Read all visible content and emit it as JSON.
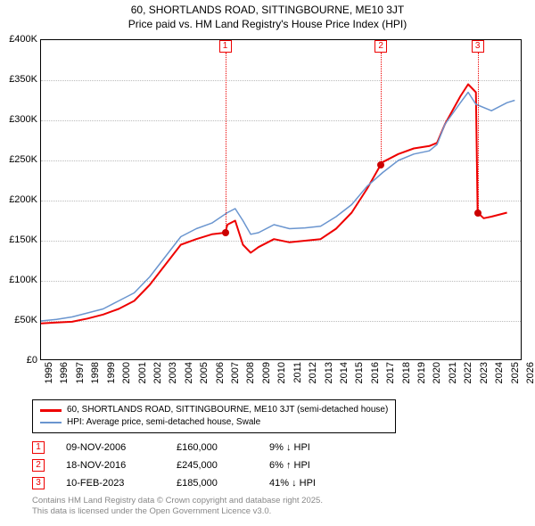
{
  "title_line1": "60, SHORTLANDS ROAD, SITTINGBOURNE, ME10 3JT",
  "title_line2": "Price paid vs. HM Land Registry's House Price Index (HPI)",
  "chart": {
    "type": "line",
    "background_color": "#ffffff",
    "grid_color": "#bbbbbb",
    "axis_color": "#000000",
    "label_fontsize": 11,
    "x": {
      "min": 1995,
      "max": 2026,
      "ticks": [
        1995,
        1996,
        1997,
        1998,
        1999,
        2000,
        2001,
        2002,
        2003,
        2004,
        2005,
        2006,
        2007,
        2008,
        2009,
        2010,
        2011,
        2012,
        2013,
        2014,
        2015,
        2016,
        2017,
        2018,
        2019,
        2020,
        2021,
        2022,
        2023,
        2024,
        2025,
        2026
      ]
    },
    "y": {
      "min": 0,
      "max": 400000,
      "ticks": [
        0,
        50000,
        100000,
        150000,
        200000,
        250000,
        300000,
        350000,
        400000
      ],
      "tick_labels": [
        "£0",
        "£50K",
        "£100K",
        "£150K",
        "£200K",
        "£250K",
        "£300K",
        "£350K",
        "£400K"
      ]
    },
    "series": [
      {
        "name": "property",
        "label": "60, SHORTLANDS ROAD, SITTINGBOURNE, ME10 3JT (semi-detached house)",
        "color": "#ee0000",
        "line_width": 2,
        "data": [
          [
            1995,
            47000
          ],
          [
            1996,
            48000
          ],
          [
            1997,
            49000
          ],
          [
            1998,
            53000
          ],
          [
            1999,
            58000
          ],
          [
            2000,
            65000
          ],
          [
            2001,
            75000
          ],
          [
            2002,
            95000
          ],
          [
            2003,
            120000
          ],
          [
            2004,
            145000
          ],
          [
            2005,
            152000
          ],
          [
            2006,
            158000
          ],
          [
            2006.86,
            160000
          ],
          [
            2007,
            170000
          ],
          [
            2007.5,
            175000
          ],
          [
            2008,
            145000
          ],
          [
            2008.5,
            135000
          ],
          [
            2009,
            142000
          ],
          [
            2010,
            152000
          ],
          [
            2011,
            148000
          ],
          [
            2012,
            150000
          ],
          [
            2013,
            152000
          ],
          [
            2014,
            165000
          ],
          [
            2015,
            185000
          ],
          [
            2016,
            215000
          ],
          [
            2016.88,
            245000
          ],
          [
            2017,
            248000
          ],
          [
            2018,
            258000
          ],
          [
            2019,
            265000
          ],
          [
            2020,
            268000
          ],
          [
            2020.5,
            272000
          ],
          [
            2021,
            295000
          ],
          [
            2022,
            330000
          ],
          [
            2022.5,
            345000
          ],
          [
            2023,
            335000
          ],
          [
            2023.11,
            185000
          ],
          [
            2023.5,
            178000
          ],
          [
            2024,
            180000
          ],
          [
            2025,
            185000
          ]
        ]
      },
      {
        "name": "hpi",
        "label": "HPI: Average price, semi-detached house, Swale",
        "color": "#6a95cf",
        "line_width": 1.5,
        "data": [
          [
            1995,
            50000
          ],
          [
            1996,
            52000
          ],
          [
            1997,
            55000
          ],
          [
            1998,
            60000
          ],
          [
            1999,
            65000
          ],
          [
            2000,
            75000
          ],
          [
            2001,
            85000
          ],
          [
            2002,
            105000
          ],
          [
            2003,
            130000
          ],
          [
            2004,
            155000
          ],
          [
            2005,
            165000
          ],
          [
            2006,
            172000
          ],
          [
            2007,
            185000
          ],
          [
            2007.5,
            190000
          ],
          [
            2008,
            175000
          ],
          [
            2008.5,
            158000
          ],
          [
            2009,
            160000
          ],
          [
            2010,
            170000
          ],
          [
            2011,
            165000
          ],
          [
            2012,
            166000
          ],
          [
            2013,
            168000
          ],
          [
            2014,
            180000
          ],
          [
            2015,
            195000
          ],
          [
            2016,
            218000
          ],
          [
            2017,
            235000
          ],
          [
            2018,
            250000
          ],
          [
            2019,
            258000
          ],
          [
            2020,
            262000
          ],
          [
            2020.5,
            270000
          ],
          [
            2021,
            295000
          ],
          [
            2022,
            322000
          ],
          [
            2022.5,
            335000
          ],
          [
            2023,
            320000
          ],
          [
            2024,
            312000
          ],
          [
            2025,
            322000
          ],
          [
            2025.5,
            325000
          ]
        ]
      }
    ],
    "sale_points": [
      {
        "index": "1",
        "year": 2006.86,
        "price": 160000,
        "color": "#ee0000"
      },
      {
        "index": "2",
        "year": 2016.88,
        "price": 245000,
        "color": "#ee0000"
      },
      {
        "index": "3",
        "year": 2023.11,
        "price": 185000,
        "color": "#ee0000"
      }
    ]
  },
  "legend_line1": "60, SHORTLANDS ROAD, SITTINGBOURNE, ME10 3JT (semi-detached house)",
  "legend_line2": "HPI: Average price, semi-detached house, Swale",
  "sales_table": [
    {
      "idx": "1",
      "date": "09-NOV-2006",
      "price": "£160,000",
      "diff": "9% ↓ HPI"
    },
    {
      "idx": "2",
      "date": "18-NOV-2016",
      "price": "£245,000",
      "diff": "6% ↑ HPI"
    },
    {
      "idx": "3",
      "date": "10-FEB-2023",
      "price": "£185,000",
      "diff": "41% ↓ HPI"
    }
  ],
  "copyright_line1": "Contains HM Land Registry data © Crown copyright and database right 2025.",
  "copyright_line2": "This data is licensed under the Open Government Licence v3.0.",
  "colors": {
    "marker_border": "#ee0000",
    "dot_fill": "#cc0000",
    "hpi_line": "#6a95cf"
  }
}
